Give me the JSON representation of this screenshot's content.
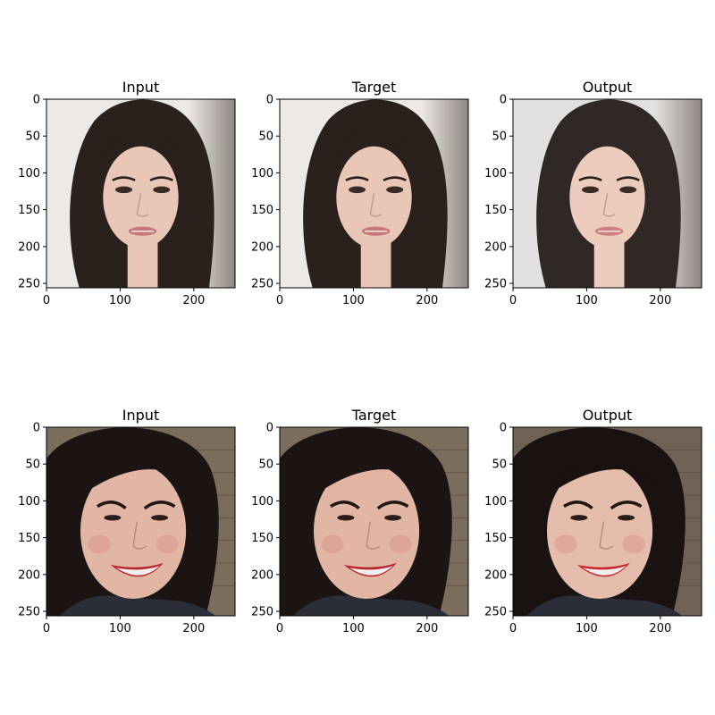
{
  "figure": {
    "background": "#ffffff"
  },
  "chart_data": [
    {
      "type": "image",
      "title": "Input",
      "subject": "face-long-dark-wavy-hair",
      "xticks": [
        0,
        100,
        200
      ],
      "yticks": [
        0,
        50,
        100,
        150,
        200,
        250
      ],
      "xlim": [
        0,
        256
      ],
      "ylim": [
        256,
        0
      ],
      "colors": {
        "background": "#ece9e6",
        "hair": "#2a211c",
        "skin": "#e9c7b7",
        "lips": "#c7787a"
      }
    },
    {
      "type": "image",
      "title": "Target",
      "subject": "face-long-dark-wavy-hair",
      "xticks": [
        0,
        100,
        200
      ],
      "yticks": [
        0,
        50,
        100,
        150,
        200,
        250
      ],
      "xlim": [
        0,
        256
      ],
      "ylim": [
        256,
        0
      ],
      "colors": {
        "background": "#ece9e6",
        "hair": "#2a211c",
        "skin": "#e9c7b7",
        "lips": "#c7787a"
      }
    },
    {
      "type": "image",
      "title": "Output",
      "subject": "face-long-dark-wavy-hair",
      "xticks": [
        0,
        100,
        200
      ],
      "yticks": [
        0,
        50,
        100,
        150,
        200,
        250
      ],
      "xlim": [
        0,
        256
      ],
      "ylim": [
        256,
        0
      ],
      "colors": {
        "background": "#e3e1df",
        "hair": "#2f2824",
        "skin": "#ecccbc",
        "lips": "#cf7f82"
      }
    },
    {
      "type": "image",
      "title": "Input",
      "subject": "face-smiling-red-lips",
      "xticks": [
        0,
        100,
        200
      ],
      "yticks": [
        0,
        50,
        100,
        150,
        200,
        250
      ],
      "xlim": [
        0,
        256
      ],
      "ylim": [
        256,
        0
      ],
      "colors": {
        "background": "#7b6d5c",
        "hair": "#1c1413",
        "skin": "#e2b6a5",
        "lips": "#b8232c"
      }
    },
    {
      "type": "image",
      "title": "Target",
      "subject": "face-smiling-red-lips",
      "xticks": [
        0,
        100,
        200
      ],
      "yticks": [
        0,
        50,
        100,
        150,
        200,
        250
      ],
      "xlim": [
        0,
        256
      ],
      "ylim": [
        256,
        0
      ],
      "colors": {
        "background": "#7b6d5c",
        "hair": "#1c1413",
        "skin": "#e2b6a5",
        "lips": "#b8232c"
      }
    },
    {
      "type": "image",
      "title": "Output",
      "subject": "face-smiling-red-lips",
      "xticks": [
        0,
        100,
        200
      ],
      "yticks": [
        0,
        50,
        100,
        150,
        200,
        250
      ],
      "xlim": [
        0,
        256
      ],
      "ylim": [
        256,
        0
      ],
      "colors": {
        "background": "#6f6254",
        "hair": "#191211",
        "skin": "#e5bdac",
        "lips": "#c8262f"
      }
    }
  ]
}
